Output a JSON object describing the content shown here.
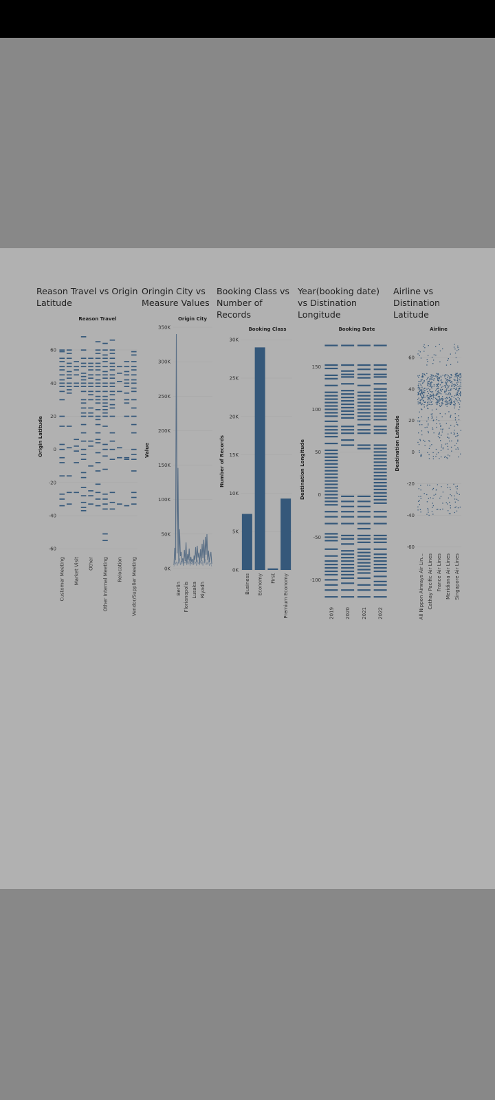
{
  "colors": {
    "mark": "#35587a",
    "screen_dim": "#888888",
    "panel": "#b1b1b1",
    "status_bar": "#000000",
    "text": "#222222",
    "tick_text": "#333333",
    "gridline": "#a8a8a8"
  },
  "dashboard": {
    "titles": [
      "Reason Travel vs Origin\nLatitude",
      "Oringin City vs\nMeasure Values",
      "Booking Class vs\nNumber of\nRecords",
      "Year(booking date)\nvs Distination\nLongitude",
      "Airline vs\nDistination\nLatitude"
    ]
  },
  "chart_data": [
    {
      "type": "strip",
      "title": "Reason Travel vs Origin\nLatitude",
      "header": "Reason Travel",
      "xlabel": "",
      "ylabel": "Origin Latitude",
      "ylim": [
        -62,
        70
      ],
      "yticks": [
        60,
        40,
        20,
        0,
        -20,
        -40,
        -60
      ],
      "grid": true,
      "categories": [
        "Customer Meeting",
        "",
        "Market Visit",
        "",
        "Other",
        "",
        "Other Internal Meeting",
        "",
        "Relocation",
        "",
        "Vendor/Supplier Meeting"
      ],
      "values_per_category": [
        [
          60,
          59,
          55,
          53,
          50,
          48,
          45,
          42,
          40,
          38,
          35,
          30,
          20,
          14,
          3,
          0,
          -5,
          -8,
          -16,
          -27,
          -30,
          -34
        ],
        [
          60,
          58,
          55,
          52,
          50,
          47,
          45,
          43,
          40,
          38,
          36,
          34,
          14,
          1,
          -16,
          -26,
          -33
        ],
        [
          53,
          50,
          48,
          45,
          40,
          38,
          6,
          2,
          -1,
          -8,
          -26
        ],
        [
          68,
          60,
          55,
          52,
          50,
          46,
          44,
          42,
          40,
          38,
          35,
          30,
          28,
          25,
          22,
          20,
          15,
          10,
          5,
          0,
          -3,
          -6,
          -14,
          -17,
          -23,
          -28,
          -32,
          -35,
          -37
        ],
        [
          55,
          52,
          50,
          48,
          45,
          43,
          40,
          38,
          35,
          33,
          30,
          25,
          22,
          20,
          5,
          2,
          -10,
          -25,
          -28,
          -33
        ],
        [
          65,
          60,
          58,
          55,
          52,
          50,
          48,
          45,
          42,
          40,
          38,
          35,
          32,
          30,
          28,
          24,
          20,
          18,
          15,
          10,
          6,
          4,
          -2,
          -8,
          -13,
          -21,
          -26,
          -30,
          -34
        ],
        [
          64,
          60,
          57,
          55,
          53,
          50,
          47,
          45,
          43,
          40,
          38,
          35,
          32,
          30,
          28,
          26,
          24,
          22,
          20,
          14,
          3,
          0,
          -4,
          -12,
          -27,
          -30,
          -33,
          -36,
          -51,
          -55
        ],
        [
          66,
          60,
          58,
          55,
          52,
          50,
          48,
          45,
          43,
          40,
          38,
          35,
          33,
          30,
          27,
          25,
          20,
          10,
          5,
          0,
          -6,
          -26,
          -32,
          -36
        ],
        [
          50,
          46,
          41,
          35,
          1,
          -5,
          -33
        ],
        [
          53,
          50,
          47,
          45,
          42,
          40,
          38,
          34,
          30,
          28,
          20,
          -5,
          -6,
          -34
        ],
        [
          59,
          57,
          53,
          50,
          48,
          45,
          42,
          40,
          37,
          35,
          30,
          25,
          20,
          15,
          10,
          0,
          -3,
          -6,
          -13,
          -26,
          -29,
          -33
        ]
      ]
    },
    {
      "type": "line",
      "title": "Oringin City vs\nMeasure Values",
      "header": "Origin City",
      "xlabel": "",
      "ylabel": "Value",
      "ylim": [
        0,
        350000
      ],
      "yticks": [
        "350K",
        "300K",
        "250K",
        "200K",
        "150K",
        "100K",
        "50K",
        "0K"
      ],
      "grid": true,
      "tick_labels": [
        "Berlin",
        "Florianopolis",
        "Lusaka",
        "Riyadh"
      ],
      "series": [
        {
          "values": [
            5000,
            30000,
            12000,
            340000,
            22000,
            146000,
            8000,
            57000,
            18000,
            24000,
            9000,
            15000,
            4000,
            27000,
            11000,
            38000,
            6000,
            21000,
            13000,
            29000,
            7000,
            17000,
            10000,
            14000,
            5000,
            19000,
            12000,
            31000,
            9000,
            33000,
            16000,
            23000,
            6000,
            28000,
            11000,
            36000,
            15000,
            42000,
            8000,
            46000,
            20000,
            50000,
            12000,
            26000,
            9000,
            18000,
            24000,
            7000
          ]
        },
        {
          "values": [
            3000,
            12000,
            6000,
            10000,
            4000,
            9000,
            7000,
            15000,
            5000,
            11000,
            6000,
            13000,
            4000,
            9000,
            8000,
            12000,
            5000,
            10000,
            6000,
            14000,
            4000,
            9000,
            7000,
            11000,
            5000,
            12000,
            6000,
            10000,
            4000,
            13000,
            7000,
            9000,
            5000,
            11000,
            6000,
            12000,
            4000,
            10000,
            8000,
            14000,
            5000,
            9000,
            6000,
            12000,
            4000,
            8000,
            7000,
            3000
          ]
        }
      ]
    },
    {
      "type": "bar",
      "title": "Booking Class vs\nNumber of\nRecords",
      "header": "Booking Class",
      "xlabel": "",
      "ylabel": "Number of Records",
      "ylim": [
        0,
        31000
      ],
      "yticks": [
        "30K",
        "25K",
        "20K",
        "15K",
        "10K",
        "5K",
        "0K"
      ],
      "grid": true,
      "categories": [
        "Business",
        "Economy",
        "First",
        "Premium Economy"
      ],
      "values": [
        7300,
        29000,
        200,
        9300
      ]
    },
    {
      "type": "strip",
      "title": "Year(booking date)\nvs Distination\nLongitude",
      "header": "Booking Date",
      "xlabel": "",
      "ylabel": "Destination Longitude",
      "ylim": [
        -128,
        185
      ],
      "yticks": [
        150,
        100,
        50,
        0,
        -50,
        -100
      ],
      "grid": true,
      "categories": [
        "2019",
        "2020",
        "2021",
        "2022"
      ],
      "values_per_category": [
        [
          175,
          152,
          148,
          140,
          136,
          128,
          120,
          116,
          112,
          108,
          104,
          100,
          96,
          92,
          86,
          80,
          76,
          72,
          68,
          60,
          52,
          48,
          44,
          40,
          36,
          32,
          28,
          24,
          20,
          16,
          12,
          8,
          4,
          0,
          -4,
          -8,
          -12,
          -20,
          -26,
          -34,
          -46,
          -50,
          -54,
          -64,
          -72,
          -78,
          -82,
          -86,
          -90,
          -94,
          -100,
          -106,
          -112,
          -120
        ],
        [
          175,
          152,
          145,
          141,
          138,
          130,
          122,
          118,
          114,
          110,
          106,
          102,
          98,
          94,
          90,
          80,
          76,
          72,
          64,
          58,
          -2,
          -8,
          -14,
          -20,
          -26,
          -34,
          -48,
          -52,
          -58,
          -66,
          -70,
          -74,
          -78,
          -82,
          -86,
          -90,
          -94,
          -98,
          -104,
          -112,
          -120
        ],
        [
          175,
          152,
          147,
          141,
          137,
          128,
          120,
          116,
          112,
          108,
          104,
          100,
          96,
          92,
          88,
          82,
          76,
          72,
          58,
          54,
          -2,
          -8,
          -14,
          -20,
          -26,
          -34,
          -40,
          -48,
          -52,
          -56,
          -64,
          -68,
          -72,
          -76,
          -80,
          -84,
          -88,
          -92,
          -98,
          -106,
          -112,
          -120
        ],
        [
          175,
          152,
          147,
          141,
          138,
          130,
          124,
          120,
          116,
          112,
          108,
          104,
          100,
          96,
          92,
          88,
          80,
          76,
          72,
          58,
          54,
          50,
          46,
          42,
          38,
          34,
          30,
          26,
          22,
          18,
          14,
          10,
          6,
          2,
          -2,
          -6,
          -10,
          -20,
          -26,
          -34,
          -48,
          -52,
          -56,
          -64,
          -70,
          -74,
          -78,
          -82,
          -86,
          -90,
          -96,
          -102,
          -106,
          -112,
          -120
        ]
      ]
    },
    {
      "type": "scatter",
      "title": "Airline vs\nDistination\nLatitude",
      "header": "Airline",
      "xlabel": "",
      "ylabel": "Destination Latitude",
      "ylim": [
        -62,
        73
      ],
      "yticks": [
        60,
        40,
        20,
        0,
        -20,
        -40,
        -60
      ],
      "grid": true,
      "categories": [
        "All Nippon Airways Air Lin...",
        "Cathay Pacific Air Lines",
        "France Air Lines",
        "Meridiana Air Lines",
        "Singapore Air Lines"
      ]
    }
  ]
}
